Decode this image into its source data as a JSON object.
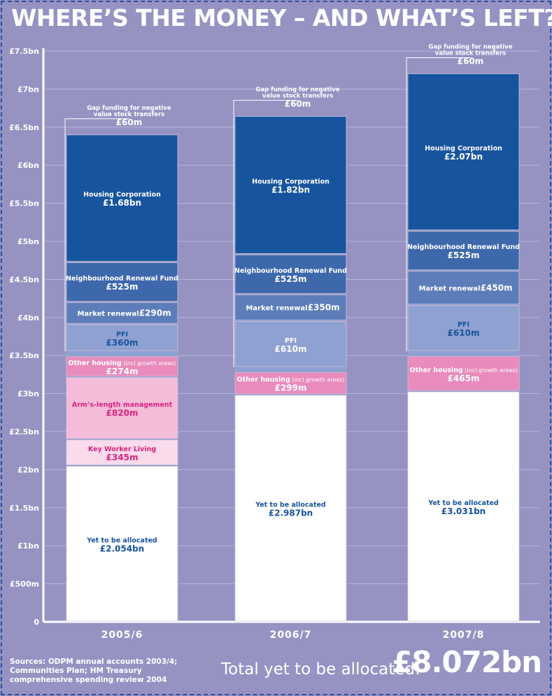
{
  "title": "WHERE’S THE MONEY – AND WHAT’S LEFT?",
  "sources": "Sources: ODPM annual accounts 2003/4; Communities Plan; HM Treasury comprehensive spending review 2004",
  "total": {
    "label": "Total yet to be allocated:",
    "value": "£8.072bn"
  },
  "colors": {
    "background": "#9693c3",
    "axis": "#ffffff",
    "grid": "#b7b5d8",
    "housing_corporation": "#17549e",
    "neighbourhood_renewal": "#3e68ac",
    "market_renewal": "#5c7dba",
    "pfi": "#8fa1d1",
    "other_housing": "#e98bbc",
    "alm": "#f5bcd9",
    "key_worker": "#f9dbeb",
    "yet_to_allocate": "#ffffff"
  },
  "chart_data": {
    "type": "bar",
    "stacked": true,
    "unit": "£bn",
    "ylim": [
      0,
      7.5
    ],
    "yticks": [
      {
        "value": 0,
        "label": "0"
      },
      {
        "value": 0.5,
        "label": "£500m"
      },
      {
        "value": 1.0,
        "label": "£1bn"
      },
      {
        "value": 1.5,
        "label": "£1.5bn"
      },
      {
        "value": 2.0,
        "label": "£2bn"
      },
      {
        "value": 2.5,
        "label": "£2.5bn"
      },
      {
        "value": 3.0,
        "label": "£3bn"
      },
      {
        "value": 3.5,
        "label": "£3.5bn"
      },
      {
        "value": 4.0,
        "label": "£4bn"
      },
      {
        "value": 4.5,
        "label": "£4.5bn"
      },
      {
        "value": 5.0,
        "label": "£5bn"
      },
      {
        "value": 5.5,
        "label": "£5.5bn"
      },
      {
        "value": 6.0,
        "label": "£6bn"
      },
      {
        "value": 6.5,
        "label": "£6.5bn"
      },
      {
        "value": 7.0,
        "label": "£7bn"
      },
      {
        "value": 7.5,
        "label": "£7.5bn"
      }
    ],
    "grid": true,
    "categories": [
      "2005/6",
      "2006/7",
      "2007/8"
    ],
    "gap_funding": {
      "label": "Gap funding for negative value stock transfers",
      "values": [
        0.06,
        0.06,
        0.06
      ],
      "value_labels": [
        "£60m",
        "£60m",
        "£60m"
      ]
    },
    "bars": [
      {
        "category": "2005/6",
        "segments": [
          {
            "name": "Yet to be allocated",
            "value": 2.054,
            "value_label": "£2.054bn",
            "color_key": "yet_to_allocate",
            "text_color": "#17549e"
          },
          {
            "name": "Key Worker Living",
            "value": 0.345,
            "value_label": "£345m",
            "color_key": "key_worker",
            "text_color": "#d8237f"
          },
          {
            "name": "Arm’s-length management",
            "value": 0.82,
            "value_label": "£820m",
            "color_key": "alm",
            "text_color": "#d8237f"
          },
          {
            "name": "Other housing",
            "name_suffix": "(incl growth areas)",
            "value": 0.274,
            "value_label": "£274m",
            "color_key": "other_housing",
            "text_color": "#ffffff"
          },
          {
            "name": "Gap",
            "value": 0.06,
            "value_label": "",
            "color_key": "gap",
            "text_color": "#ffffff",
            "hidden_label": true
          },
          {
            "name": "PFI",
            "value": 0.36,
            "value_label": "£360m",
            "color_key": "pfi",
            "text_color": "#17549e"
          },
          {
            "name": "Market renewal",
            "value": 0.29,
            "value_label": "£290m",
            "color_key": "market_renewal",
            "text_color": "#ffffff",
            "inline": true
          },
          {
            "name": "Neighbourhood Renewal Fund",
            "value": 0.525,
            "value_label": "£525m",
            "color_key": "neighbourhood_renewal",
            "text_color": "#ffffff"
          },
          {
            "name": "Housing Corporation",
            "value": 1.68,
            "value_label": "£1.68bn",
            "color_key": "housing_corporation",
            "text_color": "#ffffff"
          }
        ]
      },
      {
        "category": "2006/7",
        "segments": [
          {
            "name": "Yet to be allocated",
            "value": 2.987,
            "value_label": "£2.987bn",
            "color_key": "yet_to_allocate",
            "text_color": "#17549e"
          },
          {
            "name": "Other housing",
            "name_suffix": "(incl growth areas)",
            "value": 0.299,
            "value_label": "£299m",
            "color_key": "other_housing",
            "text_color": "#ffffff"
          },
          {
            "name": "Gap",
            "value": 0.06,
            "value_label": "",
            "color_key": "gap",
            "text_color": "#ffffff",
            "hidden_label": true
          },
          {
            "name": "PFI",
            "value": 0.61,
            "value_label": "£610m",
            "color_key": "pfi",
            "text_color": "#ffffff"
          },
          {
            "name": "Market renewal",
            "value": 0.35,
            "value_label": "£350m",
            "color_key": "market_renewal",
            "text_color": "#ffffff",
            "inline": true
          },
          {
            "name": "Neighbourhood Renewal Fund",
            "value": 0.525,
            "value_label": "£525m",
            "color_key": "neighbourhood_renewal",
            "text_color": "#ffffff"
          },
          {
            "name": "Housing Corporation",
            "value": 1.82,
            "value_label": "£1.82bn",
            "color_key": "housing_corporation",
            "text_color": "#ffffff"
          }
        ]
      },
      {
        "category": "2007/8",
        "segments": [
          {
            "name": "Yet to be allocated",
            "value": 3.031,
            "value_label": "£3.031bn",
            "color_key": "yet_to_allocate",
            "text_color": "#17549e"
          },
          {
            "name": "Other housing",
            "name_suffix": "(incl growth areas)",
            "value": 0.465,
            "value_label": "£465m",
            "color_key": "other_housing",
            "text_color": "#ffffff"
          },
          {
            "name": "Gap",
            "value": 0.06,
            "value_label": "",
            "color_key": "gap",
            "text_color": "#ffffff",
            "hidden_label": true
          },
          {
            "name": "PFI",
            "value": 0.61,
            "value_label": "£610m",
            "color_key": "pfi",
            "text_color": "#17549e"
          },
          {
            "name": "Market renewal",
            "value": 0.45,
            "value_label": "£450m",
            "color_key": "market_renewal",
            "text_color": "#ffffff",
            "inline": true
          },
          {
            "name": "Neighbourhood Renewal Fund",
            "value": 0.525,
            "value_label": "£525m",
            "color_key": "neighbourhood_renewal",
            "text_color": "#ffffff"
          },
          {
            "name": "Housing Corporation",
            "value": 2.07,
            "value_label": "£2.07bn",
            "color_key": "housing_corporation",
            "text_color": "#ffffff"
          }
        ]
      }
    ]
  }
}
